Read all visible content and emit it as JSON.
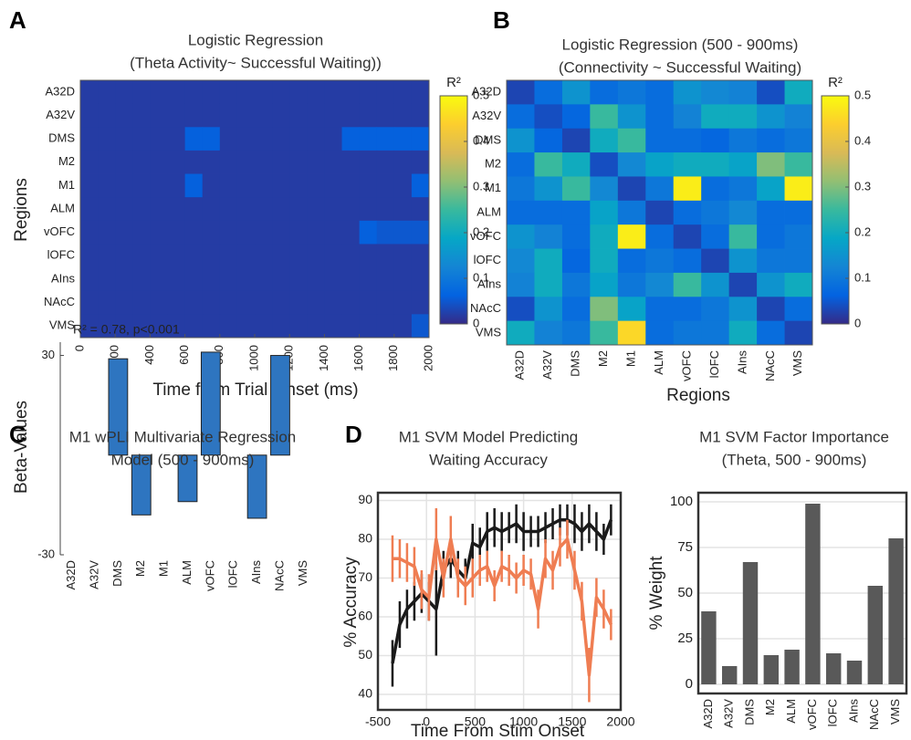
{
  "chart_data": [
    {
      "type": "heatmap",
      "panel": "A",
      "title": [
        "Logistic Regression",
        "(Theta Activity~ Successful Waiting))"
      ],
      "rows": [
        "A32D",
        "A32V",
        "DMS",
        "M2",
        "M1",
        "ALM",
        "vOFC",
        "lOFC",
        "AIns",
        "NAcC",
        "VMS"
      ],
      "xbins": [
        0,
        100,
        200,
        300,
        400,
        500,
        600,
        700,
        800,
        900,
        1000,
        1100,
        1200,
        1300,
        1400,
        1500,
        1600,
        1700,
        1800,
        1900,
        2000
      ],
      "values": [
        [
          0.02,
          0.02,
          0.02,
          0.02,
          0.02,
          0.02,
          0.02,
          0.02,
          0.02,
          0.02,
          0.02,
          0.02,
          0.02,
          0.02,
          0.02,
          0.02,
          0.02,
          0.02,
          0.02,
          0.02
        ],
        [
          0.02,
          0.02,
          0.02,
          0.02,
          0.02,
          0.02,
          0.02,
          0.02,
          0.02,
          0.02,
          0.02,
          0.02,
          0.02,
          0.02,
          0.02,
          0.02,
          0.02,
          0.02,
          0.02,
          0.02
        ],
        [
          0.02,
          0.02,
          0.02,
          0.02,
          0.02,
          0.02,
          0.06,
          0.06,
          0.02,
          0.02,
          0.02,
          0.02,
          0.02,
          0.02,
          0.02,
          0.06,
          0.06,
          0.06,
          0.06,
          0.06
        ],
        [
          0.02,
          0.02,
          0.02,
          0.02,
          0.02,
          0.02,
          0.02,
          0.02,
          0.02,
          0.02,
          0.02,
          0.02,
          0.02,
          0.02,
          0.02,
          0.02,
          0.02,
          0.02,
          0.02,
          0.02
        ],
        [
          0.02,
          0.02,
          0.02,
          0.02,
          0.02,
          0.02,
          0.06,
          0.02,
          0.02,
          0.02,
          0.02,
          0.02,
          0.02,
          0.02,
          0.02,
          0.02,
          0.02,
          0.02,
          0.02,
          0.06
        ],
        [
          0.02,
          0.02,
          0.02,
          0.02,
          0.02,
          0.02,
          0.02,
          0.02,
          0.02,
          0.02,
          0.02,
          0.02,
          0.02,
          0.02,
          0.02,
          0.02,
          0.02,
          0.02,
          0.02,
          0.02
        ],
        [
          0.02,
          0.02,
          0.02,
          0.02,
          0.02,
          0.02,
          0.02,
          0.02,
          0.02,
          0.02,
          0.02,
          0.02,
          0.02,
          0.02,
          0.02,
          0.02,
          0.06,
          0.05,
          0.05,
          0.05
        ],
        [
          0.02,
          0.02,
          0.02,
          0.02,
          0.02,
          0.02,
          0.02,
          0.02,
          0.02,
          0.02,
          0.02,
          0.02,
          0.02,
          0.02,
          0.02,
          0.02,
          0.02,
          0.02,
          0.02,
          0.02
        ],
        [
          0.02,
          0.02,
          0.02,
          0.02,
          0.02,
          0.02,
          0.02,
          0.02,
          0.02,
          0.02,
          0.02,
          0.02,
          0.02,
          0.02,
          0.02,
          0.02,
          0.02,
          0.02,
          0.02,
          0.02
        ],
        [
          0.02,
          0.02,
          0.02,
          0.02,
          0.02,
          0.02,
          0.02,
          0.02,
          0.02,
          0.02,
          0.02,
          0.02,
          0.02,
          0.02,
          0.02,
          0.02,
          0.02,
          0.02,
          0.02,
          0.02
        ],
        [
          0.02,
          0.02,
          0.02,
          0.02,
          0.02,
          0.02,
          0.02,
          0.02,
          0.02,
          0.02,
          0.02,
          0.02,
          0.02,
          0.02,
          0.02,
          0.02,
          0.02,
          0.02,
          0.02,
          0.05
        ]
      ],
      "xlim": [
        0,
        2000
      ],
      "xticks": [
        0,
        200,
        400,
        600,
        800,
        1000,
        1200,
        1400,
        1600,
        1800,
        2000
      ],
      "xlabel": "Time from Trial Onset (ms)",
      "ylabel": "Regions",
      "colormap": "parula",
      "clim": [
        0,
        0.5
      ],
      "cticks": [
        0,
        0.1,
        0.2,
        0.3,
        0.4,
        0.5
      ],
      "colorbar_label": "R²"
    },
    {
      "type": "heatmap",
      "panel": "B",
      "title": [
        "Logistic Regression (500 - 900ms)",
        "(Connectivity ~ Successful Waiting)"
      ],
      "rows": [
        "A32D",
        "A32V",
        "DMS",
        "M2",
        "M1",
        "ALM",
        "vOFC",
        "lOFC",
        "AIns",
        "NAcC",
        "VMS"
      ],
      "categories": [
        "A32D",
        "A32V",
        "DMS",
        "M2",
        "M1",
        "ALM",
        "vOFC",
        "lOFC",
        "AIns",
        "NAcC",
        "VMS"
      ],
      "values": [
        [
          0.03,
          0.08,
          0.15,
          0.08,
          0.1,
          0.08,
          0.15,
          0.13,
          0.12,
          0.04,
          0.2
        ],
        [
          0.08,
          0.04,
          0.07,
          0.25,
          0.15,
          0.08,
          0.12,
          0.2,
          0.2,
          0.15,
          0.12
        ],
        [
          0.15,
          0.07,
          0.03,
          0.2,
          0.25,
          0.08,
          0.08,
          0.07,
          0.1,
          0.08,
          0.1
        ],
        [
          0.08,
          0.25,
          0.2,
          0.04,
          0.13,
          0.18,
          0.2,
          0.2,
          0.18,
          0.3,
          0.25
        ],
        [
          0.1,
          0.15,
          0.25,
          0.13,
          0.03,
          0.1,
          0.48,
          0.08,
          0.1,
          0.18,
          0.48
        ],
        [
          0.08,
          0.08,
          0.08,
          0.18,
          0.1,
          0.03,
          0.08,
          0.1,
          0.13,
          0.08,
          0.08
        ],
        [
          0.15,
          0.12,
          0.08,
          0.2,
          0.48,
          0.08,
          0.03,
          0.08,
          0.25,
          0.08,
          0.1
        ],
        [
          0.13,
          0.2,
          0.07,
          0.2,
          0.08,
          0.1,
          0.08,
          0.03,
          0.15,
          0.1,
          0.1
        ],
        [
          0.12,
          0.2,
          0.1,
          0.18,
          0.1,
          0.13,
          0.25,
          0.15,
          0.03,
          0.15,
          0.2
        ],
        [
          0.04,
          0.15,
          0.08,
          0.3,
          0.18,
          0.08,
          0.08,
          0.1,
          0.15,
          0.03,
          0.08
        ],
        [
          0.2,
          0.12,
          0.1,
          0.25,
          0.45,
          0.08,
          0.1,
          0.1,
          0.2,
          0.08,
          0.03
        ]
      ],
      "xlabel": "Regions",
      "colormap": "parula",
      "clim": [
        0,
        0.5
      ],
      "cticks": [
        0,
        0.1,
        0.2,
        0.3,
        0.4,
        0.5
      ],
      "colorbar_label": "R²"
    },
    {
      "type": "bar",
      "panel": "C",
      "title": [
        "M1 wPLI Multivariate Regression",
        "Model (500 - 900ms)"
      ],
      "annotation": "R² = 0.78, p<0.001",
      "categories": [
        "A32D",
        "A32V",
        "DMS",
        "M2",
        "M1",
        "ALM",
        "vOFC",
        "lOFC",
        "AIns",
        "NAcC",
        "VMS"
      ],
      "values": [
        0,
        0,
        29,
        -18,
        0,
        -14,
        31,
        0,
        -19,
        30,
        0
      ],
      "color": "#2e75c0",
      "ylim": [
        -30,
        34
      ],
      "yticks": [
        -30,
        30
      ],
      "ylabel": "Beta-Values",
      "grid": false,
      "frame": false
    },
    {
      "type": "line",
      "panel": "D",
      "title": [
        "M1 SVM Model Predicting",
        "Waiting Accuracy"
      ],
      "x": [
        -350,
        -275,
        -200,
        -125,
        -50,
        25,
        100,
        175,
        250,
        325,
        400,
        475,
        550,
        625,
        700,
        775,
        850,
        925,
        1000,
        1075,
        1150,
        1225,
        1300,
        1375,
        1450,
        1525,
        1600,
        1675,
        1750,
        1825,
        1900
      ],
      "series": [
        {
          "color": "#1a1a1a",
          "values": [
            48,
            58,
            62,
            64,
            66,
            64,
            62,
            72,
            75,
            72,
            70,
            79,
            78,
            82,
            83,
            82,
            83,
            84,
            82,
            82,
            82,
            83,
            84,
            85,
            85,
            84,
            82,
            84,
            82,
            80,
            85
          ],
          "errors": [
            6,
            6,
            5,
            5,
            5,
            5,
            12,
            5,
            5,
            5,
            5,
            5,
            5,
            5,
            5,
            5,
            4,
            5,
            5,
            4,
            4,
            4,
            4,
            4,
            4,
            5,
            5,
            5,
            5,
            4,
            4
          ]
        },
        {
          "color": "#ef7d52",
          "values": [
            75,
            75,
            74,
            73,
            67,
            65,
            80,
            70,
            80,
            70,
            68,
            70,
            72,
            73,
            68,
            73,
            72,
            70,
            72,
            71,
            62,
            75,
            72,
            78,
            80,
            72,
            64,
            45,
            65,
            62,
            58
          ],
          "errors": [
            6,
            5,
            5,
            5,
            5,
            6,
            8,
            5,
            6,
            5,
            5,
            5,
            4,
            4,
            4,
            4,
            4,
            4,
            4,
            4,
            5,
            5,
            5,
            5,
            5,
            5,
            5,
            7,
            5,
            5,
            4
          ]
        }
      ],
      "xlim": [
        -500,
        2000
      ],
      "xticks": [
        -500,
        0,
        500,
        1000,
        1500,
        2000
      ],
      "ylim": [
        36,
        92
      ],
      "yticks": [
        40,
        50,
        60,
        70,
        80,
        90
      ],
      "xlabel": "Time From Stim Onset",
      "ylabel": "% Accuracy",
      "grid": true,
      "frame": true
    },
    {
      "type": "bar",
      "title": [
        "M1 SVM Factor Importance",
        "(Theta, 500 - 900ms)"
      ],
      "categories": [
        "A32D",
        "A32V",
        "DMS",
        "M2",
        "ALM",
        "vOFC",
        "lOFC",
        "AIns",
        "NAcC",
        "VMS"
      ],
      "values": [
        40,
        10,
        67,
        16,
        19,
        99,
        17,
        13,
        54,
        80
      ],
      "color": "#595959",
      "ylim": [
        -5,
        105
      ],
      "yticks": [
        0,
        25,
        50,
        75,
        100
      ],
      "ylabel": "% Weight",
      "grid": true,
      "frame": true
    }
  ]
}
